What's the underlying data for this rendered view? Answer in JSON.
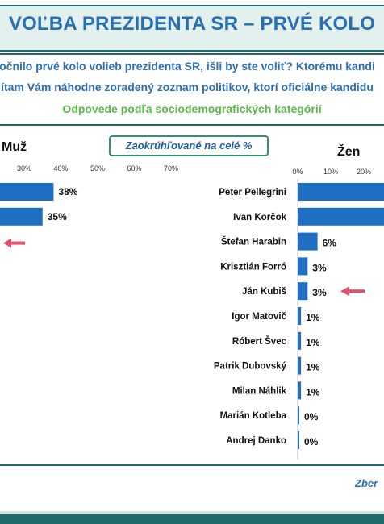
{
  "header": {
    "title": "VOĽBA PREZIDENTA SR – PRVÉ KOLO",
    "question_line1": "očnilo prvé kolo volieb prezidenta SR, išli by ste voliť? Ktorému kandi",
    "question_line2": "ítam Vám náhodne zoradený zoznam politikov, ktorí oficiálne kandidu",
    "subtitle": "Odpovede podľa sociodemografických kategórií"
  },
  "note": "Zaokrúhľované na celé %",
  "footer": "Zber",
  "colors": {
    "bar": "#1f6fc3",
    "title_blue": "#2a6fb4",
    "subtitle_green": "#5cb84a",
    "teal": "#1f6b6b",
    "arrow": "#e0506e"
  },
  "chart_data": [
    {
      "type": "bar",
      "orientation": "horizontal",
      "panel_label": "Muž",
      "x_ticks": [
        "30%",
        "40%",
        "50%",
        "60%",
        "70%"
      ],
      "values": [
        38,
        35
      ],
      "value_labels": [
        "38%",
        "35%"
      ],
      "xlim": [
        0,
        70
      ],
      "highlight_arrow_row": 2
    },
    {
      "type": "bar",
      "orientation": "horizontal",
      "panel_label": "Žen",
      "x_ticks": [
        "0%",
        "10%",
        "20%"
      ],
      "categories": [
        "Peter Pellegrini",
        "Ivan Korčok",
        "Štefan Harabin",
        "Krisztián Forró",
        "Ján Kubiš",
        "Igor Matovič",
        "Róbert Švec",
        "Patrik Dubovský",
        "Milan Náhlik",
        "Marián Kotleba",
        "Andrej Danko"
      ],
      "values": [
        null,
        null,
        6,
        3,
        3,
        1,
        1,
        1,
        1,
        0,
        0
      ],
      "value_labels": [
        "",
        "",
        "6%",
        "3%",
        "3%",
        "1%",
        "1%",
        "1%",
        "1%",
        "0%",
        "0%"
      ],
      "xlim": [
        0,
        25
      ],
      "highlight_arrow_row": 4
    }
  ]
}
